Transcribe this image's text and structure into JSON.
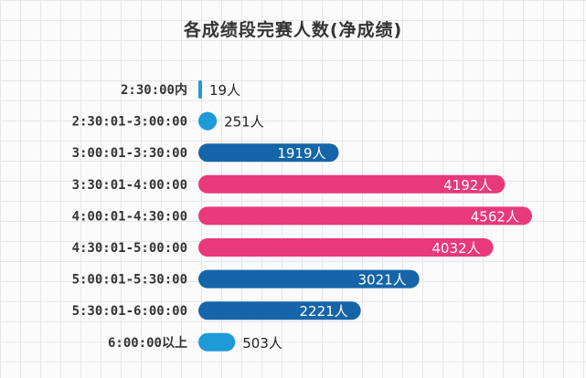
{
  "colors": {
    "background": "#fbfbfc",
    "grid": "#e6e6ea",
    "tick_text": "#333333",
    "label_dark": "#222222",
    "label_light": "#ffffff",
    "dark_blue": "#1565a8",
    "light_blue": "#1e9ad6",
    "pink": "#e8397a"
  },
  "chart_data": {
    "type": "bar",
    "orientation": "horizontal",
    "title": "各成绩段完赛人数(净成绩)",
    "xlabel": "",
    "ylabel": "",
    "grid": true,
    "xlim": [
      0,
      4750
    ],
    "unit_suffix": "人",
    "categories": [
      "2:30:00内",
      "2:30:01-3:00:00",
      "3:00:01-3:30:00",
      "3:30:01-4:00:00",
      "4:00:01-4:30:00",
      "4:30:01-5:00:00",
      "5:00:01-5:30:00",
      "5:30:01-6:00:00",
      "6:00:00以上"
    ],
    "values": [
      19,
      251,
      1919,
      4192,
      4562,
      4032,
      3021,
      2221,
      503
    ],
    "data_labels": [
      "19人",
      "251人",
      "1919人",
      "4192人",
      "4562人",
      "4032人",
      "3021人",
      "2221人",
      "503人"
    ],
    "bar_colors": [
      "light_blue",
      "light_blue",
      "dark_blue",
      "pink",
      "pink",
      "pink",
      "dark_blue",
      "dark_blue",
      "light_blue"
    ]
  }
}
